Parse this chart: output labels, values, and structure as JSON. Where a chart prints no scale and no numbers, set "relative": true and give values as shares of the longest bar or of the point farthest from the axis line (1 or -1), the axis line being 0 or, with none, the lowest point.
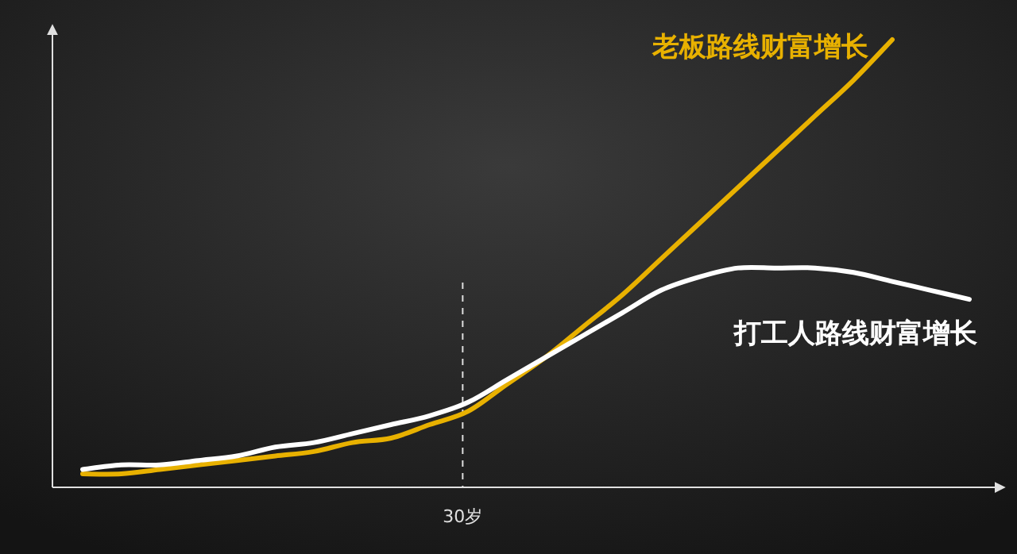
{
  "chart_data": {
    "type": "line",
    "relative": true,
    "categories": [
      null,
      null,
      null,
      null,
      null,
      null,
      null,
      null,
      null,
      null,
      null,
      null,
      null,
      null,
      null,
      null,
      null,
      null,
      null,
      null,
      null,
      null,
      null,
      null
    ],
    "series": [
      {
        "name": "老板路线财富增长",
        "color": "#e8b100",
        "values": [
          0.03,
          0.03,
          0.04,
          0.05,
          0.06,
          0.07,
          0.08,
          0.1,
          0.11,
          0.14,
          0.17,
          0.23,
          0.29,
          0.36,
          0.43,
          0.51,
          0.59,
          0.67,
          0.75,
          0.83,
          0.91,
          1,
          null,
          null
        ]
      },
      {
        "name": "打工人路线财富增长",
        "color": "#ffffff",
        "values": [
          0.04,
          0.05,
          0.05,
          0.06,
          0.07,
          0.09,
          0.1,
          0.12,
          0.14,
          0.16,
          0.19,
          0.24,
          0.29,
          0.34,
          0.39,
          0.44,
          0.47,
          0.49,
          0.49,
          0.49,
          0.48,
          0.46,
          0.44,
          0.42
        ]
      }
    ],
    "annotations": [
      "30岁"
    ],
    "marker": "none",
    "line_style": "solid",
    "grid": false
  }
}
